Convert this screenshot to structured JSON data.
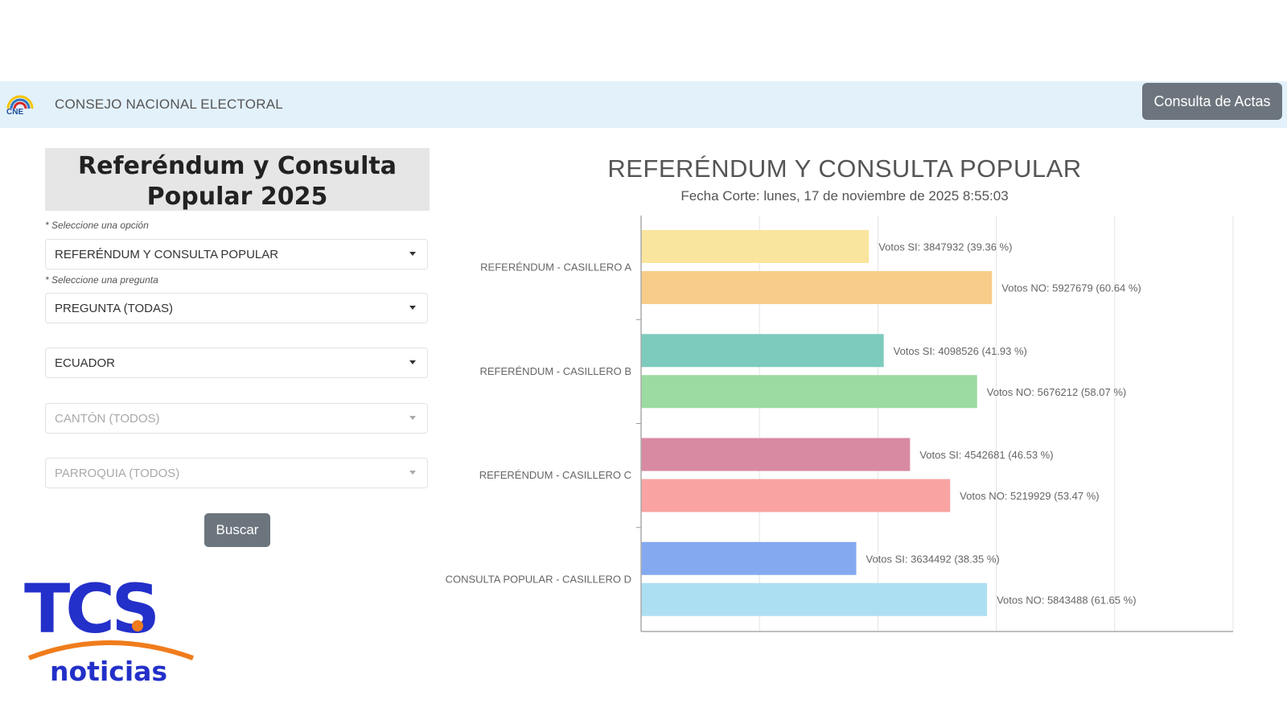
{
  "header": {
    "logo_text": "CNE",
    "org_name": "CONSEJO NACIONAL ELECTORAL",
    "actas_button": "Consulta de Actas"
  },
  "form": {
    "title": "Referéndum y Consulta Popular 2025",
    "hint_option": "* Seleccione una opción",
    "select_option": "REFERÉNDUM Y CONSULTA POPULAR",
    "hint_question": "* Seleccione una pregunta",
    "select_question": "PREGUNTA (TODAS)",
    "select_province": "ECUADOR",
    "select_canton": "CANTÓN (TODOS)",
    "select_parish": "PARROQUIA (TODOS)",
    "search_button": "Buscar"
  },
  "watermark": {
    "brand": "TCS",
    "sub": "noticias"
  },
  "chart_data": {
    "type": "bar",
    "orientation": "horizontal",
    "title": "REFERÉNDUM Y CONSULTA POPULAR",
    "subtitle": "Fecha Corte: lunes, 17 de noviembre de 2025 8:55:03",
    "categories": [
      "REFERÉNDUM - CASILLERO A",
      "REFERÉNDUM - CASILLERO B",
      "REFERÉNDUM - CASILLERO C",
      "CONSULTA POPULAR - CASILLERO D"
    ],
    "bars": [
      {
        "category": 0,
        "value": 3847932,
        "label": "Votos SI: 3847932 (39.36 %)",
        "color": "#fae59e"
      },
      {
        "category": 0,
        "value": 5927679,
        "label": "Votos NO: 5927679 (60.64 %)",
        "color": "#f8cd8a"
      },
      {
        "category": 1,
        "value": 4098526,
        "label": "Votos SI: 4098526 (41.93 %)",
        "color": "#7dcbbd"
      },
      {
        "category": 1,
        "value": 5676212,
        "label": "Votos NO: 5676212 (58.07 %)",
        "color": "#9cdba1"
      },
      {
        "category": 2,
        "value": 4542681,
        "label": "Votos SI: 4542681 (46.53 %)",
        "color": "#d98aa3"
      },
      {
        "category": 2,
        "value": 5219929,
        "label": "Votos NO: 5219929 (53.47 %)",
        "color": "#f9a3a3"
      },
      {
        "category": 3,
        "value": 3634492,
        "label": "Votos SI: 3634492 (38.35 %)",
        "color": "#84a9f0"
      },
      {
        "category": 3,
        "value": 5843488,
        "label": "Votos NO: 5843488 (61.65 %)",
        "color": "#addff2"
      }
    ],
    "xlim": [
      0,
      10000000
    ],
    "grid": true,
    "legend": "none"
  }
}
